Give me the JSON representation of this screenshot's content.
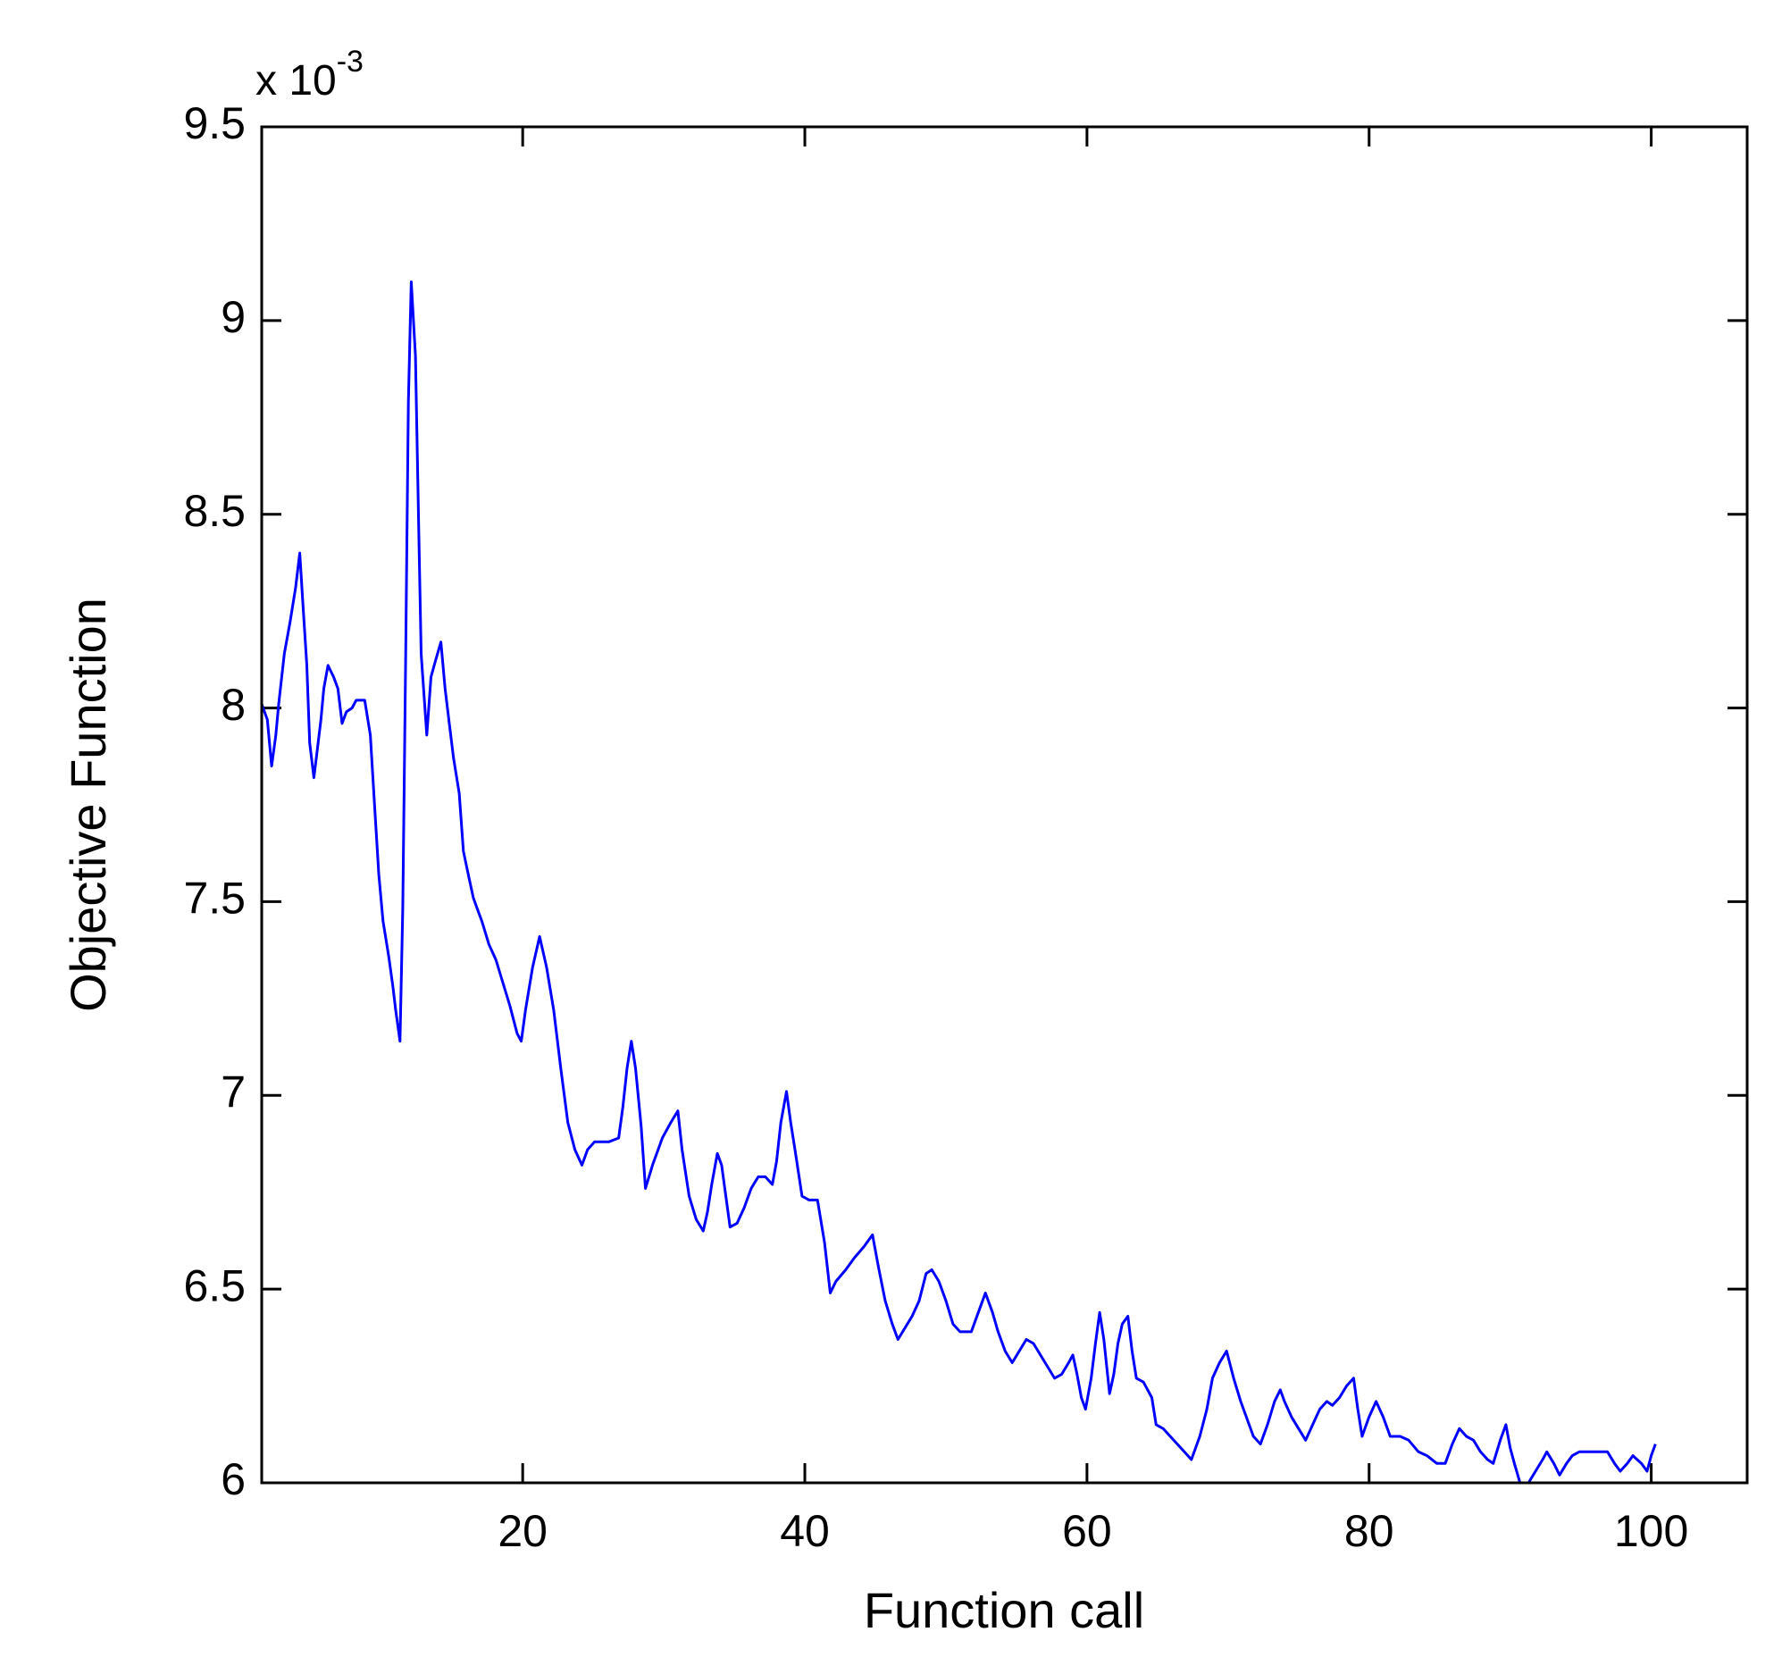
{
  "chart_data": {
    "type": "line",
    "x_label": "Function call",
    "y_label": "Objective Function",
    "y_exponent": {
      "base": "x 10",
      "power": "-3"
    },
    "xlim": [
      1.5,
      106.8
    ],
    "ylim": [
      6,
      9.5
    ],
    "xticks": [
      20,
      40,
      60,
      80,
      100
    ],
    "yticks": [
      6,
      6.5,
      7,
      7.5,
      8,
      8.5,
      9,
      9.5
    ],
    "grid": false,
    "x": [
      1.5,
      1.9,
      2.2,
      2.5,
      2.7,
      3.1,
      3.5,
      3.9,
      4.2,
      4.4,
      4.7,
      4.9,
      5.2,
      5.4,
      5.7,
      5.9,
      6.2,
      6.6,
      6.9,
      7.2,
      7.5,
      7.9,
      8.2,
      8.8,
      9.2,
      9.5,
      9.8,
      10.1,
      10.5,
      10.8,
      11.0,
      11.3,
      11.5,
      11.7,
      11.9,
      12.1,
      12.4,
      12.6,
      12.8,
      13.2,
      13.5,
      13.8,
      14.2,
      14.5,
      14.8,
      15.1,
      15.5,
      15.8,
      16.2,
      16.5,
      16.8,
      17.1,
      17.6,
      18.1,
      18.6,
      19.1,
      19.6,
      19.9,
      20.2,
      20.7,
      21.2,
      21.7,
      22.2,
      22.7,
      23.2,
      23.7,
      24.2,
      24.6,
      25.1,
      26.1,
      26.8,
      27.1,
      27.4,
      27.7,
      28.0,
      28.4,
      28.7,
      29.2,
      29.9,
      30.5,
      31.0,
      31.3,
      31.8,
      32.3,
      32.8,
      33.1,
      33.4,
      33.8,
      34.1,
      34.4,
      34.7,
      35.2,
      35.7,
      36.2,
      36.7,
      37.2,
      37.7,
      38.0,
      38.3,
      38.7,
      39.0,
      39.3,
      39.8,
      40.3,
      40.9,
      41.4,
      41.8,
      42.2,
      42.9,
      43.5,
      44.2,
      44.8,
      45.2,
      45.7,
      46.2,
      46.6,
      47.1,
      47.6,
      48.1,
      48.6,
      49.0,
      49.5,
      50.0,
      50.5,
      51.0,
      51.8,
      52.3,
      52.8,
      53.3,
      53.7,
      54.2,
      54.7,
      55.2,
      55.7,
      56.2,
      56.7,
      57.2,
      57.7,
      58.2,
      58.7,
      59.0,
      59.3,
      59.6,
      59.9,
      60.3,
      60.6,
      60.9,
      61.2,
      61.6,
      61.9,
      62.2,
      62.5,
      62.9,
      63.2,
      63.5,
      64.0,
      64.6,
      64.9,
      65.4,
      65.9,
      66.4,
      66.9,
      67.4,
      68.0,
      68.5,
      68.9,
      69.4,
      69.9,
      70.4,
      70.9,
      71.3,
      71.8,
      72.3,
      72.8,
      73.3,
      73.7,
      74.0,
      74.5,
      75.0,
      75.5,
      76.0,
      76.5,
      77.0,
      77.4,
      77.9,
      78.4,
      78.9,
      79.2,
      79.5,
      80.0,
      80.5,
      81.0,
      81.5,
      82.2,
      82.8,
      83.5,
      84.1,
      84.8,
      85.4,
      85.9,
      86.4,
      86.9,
      87.4,
      87.9,
      88.4,
      88.8,
      89.3,
      89.7,
      90.0,
      90.3,
      90.7,
      91.3,
      91.8,
      92.3,
      92.6,
      93.1,
      93.5,
      94.0,
      94.4,
      94.9,
      95.6,
      96.2,
      96.9,
      97.4,
      97.8,
      98.3,
      98.7,
      99.0,
      99.3,
      99.7,
      100.0,
      100.3
    ],
    "series": [
      {
        "name": "Objective Function",
        "color": "#0000ff",
        "values": [
          8.01,
          7.97,
          7.85,
          7.93,
          8.01,
          8.14,
          8.22,
          8.31,
          8.4,
          8.28,
          8.11,
          7.91,
          7.82,
          7.88,
          7.97,
          8.05,
          8.11,
          8.08,
          8.05,
          7.96,
          7.99,
          8.0,
          8.02,
          8.02,
          7.93,
          7.75,
          7.57,
          7.45,
          7.36,
          7.28,
          7.22,
          7.14,
          7.48,
          8.12,
          8.79,
          9.1,
          8.91,
          8.52,
          8.14,
          7.93,
          8.08,
          8.12,
          8.17,
          8.05,
          7.96,
          7.87,
          7.78,
          7.63,
          7.56,
          7.51,
          7.48,
          7.45,
          7.39,
          7.35,
          7.29,
          7.23,
          7.16,
          7.14,
          7.22,
          7.33,
          7.41,
          7.33,
          7.22,
          7.07,
          6.93,
          6.86,
          6.82,
          6.86,
          6.88,
          6.88,
          6.89,
          6.97,
          7.07,
          7.14,
          7.07,
          6.92,
          6.76,
          6.82,
          6.89,
          6.93,
          6.96,
          6.86,
          6.74,
          6.68,
          6.65,
          6.7,
          6.77,
          6.85,
          6.82,
          6.74,
          6.66,
          6.67,
          6.71,
          6.76,
          6.79,
          6.79,
          6.77,
          6.83,
          6.93,
          7.01,
          6.93,
          6.86,
          6.74,
          6.73,
          6.73,
          6.62,
          6.49,
          6.52,
          6.55,
          6.58,
          6.61,
          6.64,
          6.56,
          6.47,
          6.41,
          6.37,
          6.4,
          6.43,
          6.47,
          6.54,
          6.55,
          6.52,
          6.47,
          6.41,
          6.39,
          6.39,
          6.44,
          6.49,
          6.44,
          6.39,
          6.34,
          6.31,
          6.34,
          6.37,
          6.36,
          6.33,
          6.3,
          6.27,
          6.28,
          6.31,
          6.33,
          6.28,
          6.22,
          6.19,
          6.27,
          6.36,
          6.44,
          6.37,
          6.23,
          6.28,
          6.36,
          6.41,
          6.43,
          6.34,
          6.27,
          6.26,
          6.22,
          6.15,
          6.14,
          6.12,
          6.1,
          6.08,
          6.06,
          6.12,
          6.19,
          6.27,
          6.31,
          6.34,
          6.27,
          6.21,
          6.17,
          6.12,
          6.1,
          6.15,
          6.21,
          6.24,
          6.21,
          6.17,
          6.14,
          6.11,
          6.15,
          6.19,
          6.21,
          6.2,
          6.22,
          6.25,
          6.27,
          6.19,
          6.12,
          6.17,
          6.21,
          6.17,
          6.12,
          6.12,
          6.11,
          6.08,
          6.07,
          6.05,
          6.05,
          6.1,
          6.14,
          6.12,
          6.11,
          6.08,
          6.06,
          6.05,
          6.11,
          6.15,
          6.09,
          6.05,
          6.0,
          6.0,
          6.03,
          6.06,
          6.08,
          6.05,
          6.02,
          6.05,
          6.07,
          6.08,
          6.08,
          6.08,
          6.08,
          6.05,
          6.03,
          6.05,
          6.07,
          6.06,
          6.05,
          6.03,
          6.07,
          6.1
        ]
      }
    ]
  }
}
